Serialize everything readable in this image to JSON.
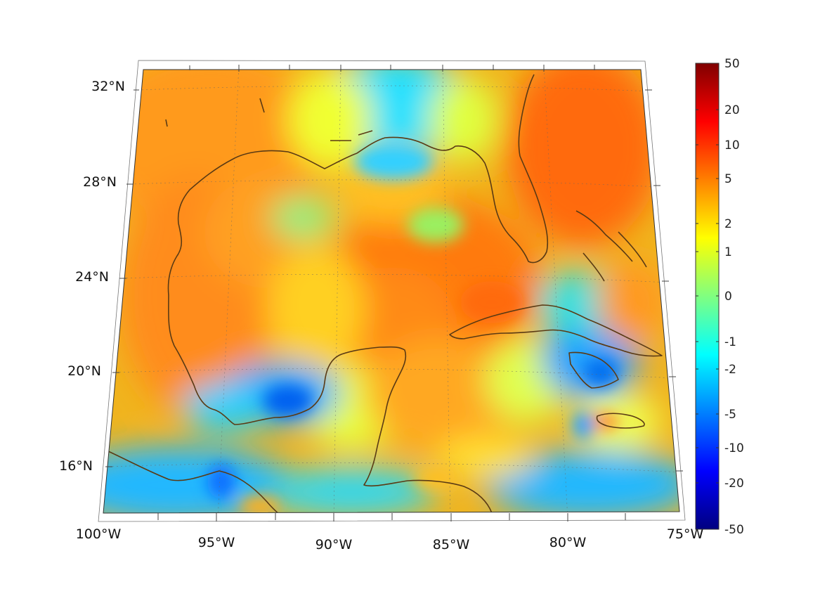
{
  "map": {
    "projection": "conic",
    "region_extent": {
      "lon_min": -100,
      "lon_max": -75,
      "lat_min": 14,
      "lat_max": 33
    },
    "lon_ticks": [
      {
        "value": -100,
        "label": "100°W"
      },
      {
        "value": -95,
        "label": "95°W"
      },
      {
        "value": -90,
        "label": "90°W"
      },
      {
        "value": -85,
        "label": "85°W"
      },
      {
        "value": -80,
        "label": "80°W"
      },
      {
        "value": -75,
        "label": "75°W"
      }
    ],
    "lat_ticks": [
      {
        "value": 32,
        "label": "32°N"
      },
      {
        "value": 28,
        "label": "28°N"
      },
      {
        "value": 24,
        "label": "24°N"
      },
      {
        "value": 20,
        "label": "20°N"
      },
      {
        "value": 16,
        "label": "16°N"
      }
    ],
    "grid": true,
    "coastline_color": "#5a3a14"
  },
  "colorbar": {
    "colormap": "jet",
    "ticks": [
      "50",
      "20",
      "10",
      "5",
      "2",
      "1",
      "0",
      "-1",
      "-2",
      "-5",
      "-10",
      "-20",
      "-50"
    ],
    "colors": [
      "#800000",
      "#ff0000",
      "#ff8000",
      "#ffff00",
      "#80ff80",
      "#00ffff",
      "#0080ff",
      "#0000ff",
      "#000080"
    ]
  }
}
